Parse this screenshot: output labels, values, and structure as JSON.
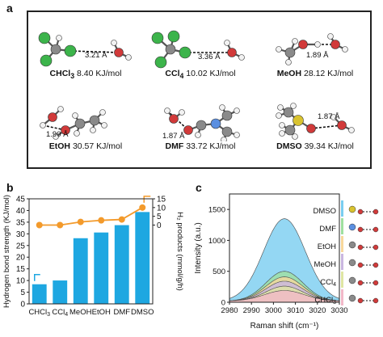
{
  "panel_labels": {
    "a": "a",
    "b": "b",
    "c": "c"
  },
  "molecules": [
    {
      "name": "CHCl",
      "sub": "3",
      "energy": "8.40 KJ/mol",
      "distance": "3.21 Å",
      "kind": "chcl3"
    },
    {
      "name": "CCl",
      "sub": "4",
      "energy": "10.02 KJ/mol",
      "distance": "3.36 Å",
      "kind": "ccl4"
    },
    {
      "name": "MeOH",
      "sub": "",
      "energy": "28.12 KJ/mol",
      "distance": "1.89 Å",
      "kind": "meoh"
    },
    {
      "name": "EtOH",
      "sub": "",
      "energy": "30.57 KJ/mol",
      "distance": "1.90 Å",
      "kind": "etoh"
    },
    {
      "name": "DMF",
      "sub": "",
      "energy": "33.72 KJ/mol",
      "distance": "1.87 Å",
      "kind": "dmf"
    },
    {
      "name": "DMSO",
      "sub": "",
      "energy": "39.34 KJ/mol",
      "distance": "1.87 Å",
      "kind": "dmso"
    }
  ],
  "colors": {
    "bar": "#1ea7e1",
    "line": "#f39a2b",
    "spectrum_fill": "#8fd6f2",
    "carbon": "#8a8a8a",
    "hydrogen": "#f2f2f2",
    "oxygen": "#d13a3a",
    "chlorine": "#3cb44b",
    "nitrogen": "#5b8fe0",
    "sulfur": "#d9c32f"
  },
  "chart_data": [
    {
      "type": "bar",
      "categories": [
        "CHCl3",
        "CCl4",
        "MeOH",
        "EtOH",
        "DMF",
        "DMSO"
      ],
      "series": [
        {
          "values": [
            8.4,
            10.02,
            28.12,
            30.57,
            33.72,
            39.34
          ],
          "axis": "left",
          "style": "bar",
          "color": "#1ea7e1"
        },
        {
          "values": [
            0.0,
            0.0,
            1.8,
            2.7,
            3.2,
            10.0
          ],
          "axis": "right",
          "style": "line-marker",
          "color": "#f39a2b"
        }
      ],
      "ylabel": "Hydrogen bond strength (KJ/mol)",
      "y2label": "H₂ products (mmol/g/h)",
      "ylim": [
        0,
        45
      ],
      "y2lim": [
        -45,
        15
      ],
      "yticks": [
        0,
        5,
        10,
        15,
        20,
        25,
        30,
        35,
        40,
        45
      ],
      "y2ticks": [
        0,
        5,
        10,
        15
      ]
    },
    {
      "type": "area",
      "xlabel": "Raman shift (cm⁻¹)",
      "ylabel": "Intensity (a.u.)",
      "xlim": [
        2980,
        3030
      ],
      "ylim": [
        0,
        1750
      ],
      "xticks": [
        2980,
        2990,
        3000,
        3010,
        3020,
        3030
      ],
      "yticks": [
        0,
        500,
        1000,
        1500
      ],
      "series": [
        {
          "name": "DMSO",
          "peak_x": 3005,
          "peak_y": 1330,
          "width": 9.5,
          "color": "#79cdf0"
        },
        {
          "name": "DMF",
          "peak_x": 3005,
          "peak_y": 480,
          "width": 8.5,
          "color": "#9fe0a0"
        },
        {
          "name": "EtOH",
          "peak_x": 3005,
          "peak_y": 390,
          "width": 8.5,
          "color": "#f7d79b"
        },
        {
          "name": "MeOH",
          "peak_x": 3005,
          "peak_y": 320,
          "width": 8.5,
          "color": "#c9b6e0"
        },
        {
          "name": "CCl4",
          "peak_x": 3005,
          "peak_y": 240,
          "width": 8.5,
          "color": "#dfe6a3"
        },
        {
          "name": "CHCl3",
          "peak_x": 3005,
          "peak_y": 170,
          "width": 9,
          "color": "#f2b8c8"
        }
      ],
      "legend_order": [
        "DMSO",
        "DMF",
        "EtOH",
        "MeOH",
        "CCl4",
        "CHCl3"
      ],
      "legend_subs": {
        "CCl4": [
          "CCl",
          "4"
        ],
        "CHCl3": [
          "CHCl",
          "3"
        ]
      },
      "legend_placement": "right"
    }
  ]
}
